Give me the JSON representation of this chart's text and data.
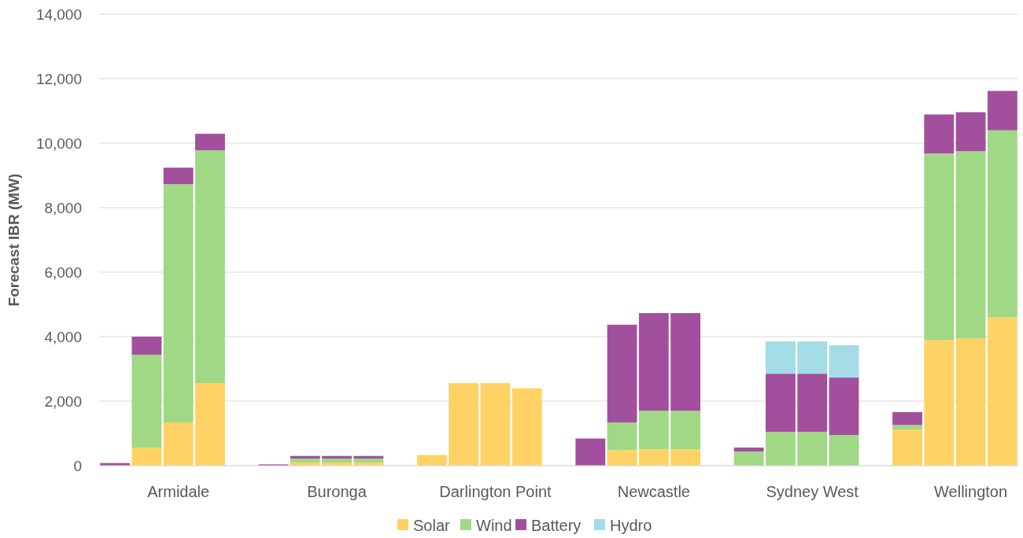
{
  "chart_data": {
    "type": "bar",
    "stacked": true,
    "ylabel": "Forecast IBR (MW)",
    "categories": [
      null,
      null,
      "Armidale",
      null,
      null,
      null,
      null,
      "Buronga",
      null,
      null,
      null,
      null,
      "Darlington Point",
      null,
      null,
      null,
      null,
      "Newcastle",
      null,
      null,
      null,
      null,
      "Sydney West",
      null,
      null,
      null,
      null,
      "Wellington",
      null
    ],
    "series": [
      {
        "name": "Solar",
        "color": "#ffd266",
        "values": [
          0,
          560,
          1340,
          2560,
          null,
          0,
          100,
          100,
          100,
          null,
          330,
          2560,
          2560,
          2400,
          null,
          0,
          480,
          510,
          510,
          null,
          0,
          0,
          0,
          0,
          null,
          1120,
          3900,
          3950,
          4600
        ]
      },
      {
        "name": "Wind",
        "color": "#a0d886",
        "values": [
          0,
          2880,
          7390,
          7220,
          null,
          0,
          120,
          120,
          120,
          null,
          0,
          0,
          0,
          0,
          null,
          0,
          860,
          1190,
          1190,
          null,
          440,
          1050,
          1050,
          950,
          null,
          140,
          5780,
          5800,
          5800
        ]
      },
      {
        "name": "Battery",
        "color": "#a24f9d",
        "values": [
          80,
          560,
          510,
          510,
          null,
          40,
          80,
          80,
          80,
          null,
          0,
          0,
          0,
          0,
          null,
          840,
          3030,
          3030,
          3030,
          null,
          120,
          1800,
          1800,
          1780,
          null,
          400,
          1210,
          1210,
          1220
        ]
      },
      {
        "name": "Hydro",
        "color": "#a3dbe6",
        "values": [
          0,
          0,
          0,
          0,
          null,
          0,
          0,
          0,
          0,
          null,
          0,
          0,
          0,
          0,
          null,
          0,
          0,
          0,
          0,
          null,
          0,
          1000,
          1000,
          1000,
          null,
          0,
          0,
          0,
          0
        ]
      }
    ],
    "ylim": [
      0,
      14000
    ],
    "yticks": [
      {
        "value": 0,
        "label": "0"
      },
      {
        "value": 2000,
        "label": "2,000"
      },
      {
        "value": 4000,
        "label": "4,000"
      },
      {
        "value": 6000,
        "label": "6,000"
      },
      {
        "value": 8000,
        "label": "8,000"
      },
      {
        "value": 10000,
        "label": "10,000"
      },
      {
        "value": 12000,
        "label": "12,000"
      },
      {
        "value": 14000,
        "label": "14,000"
      }
    ],
    "grid": "y",
    "legend": "bottom"
  }
}
